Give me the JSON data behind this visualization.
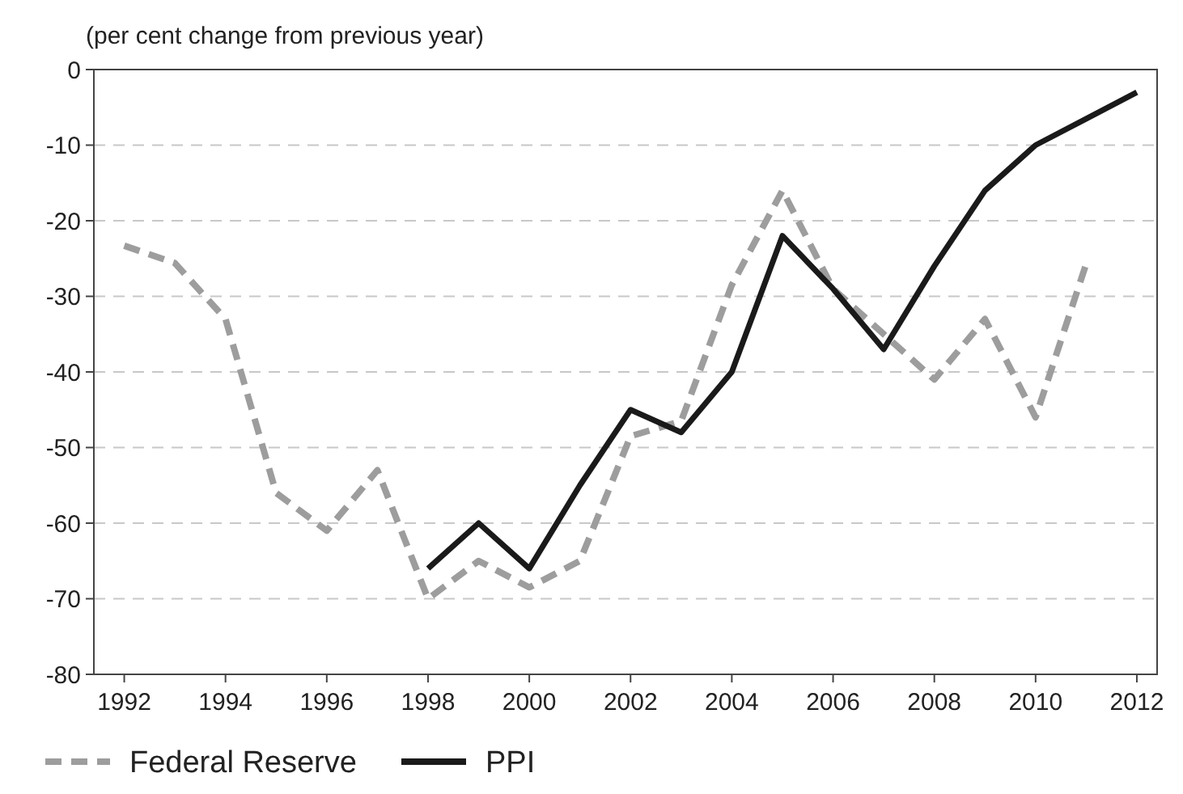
{
  "chart_data": {
    "type": "line",
    "ylabel": "(per cent change from previous year)",
    "x": [
      1992,
      1993,
      1994,
      1995,
      1996,
      1997,
      1998,
      1999,
      2000,
      2001,
      2002,
      2003,
      2004,
      2005,
      2006,
      2007,
      2008,
      2009,
      2010,
      2011,
      2012
    ],
    "series": [
      {
        "name": "Federal Reserve",
        "color": "#9d9d9d",
        "line_style": "dashed",
        "values": [
          -23.3,
          -25.6,
          -33,
          -56,
          -61,
          -53,
          -70,
          -65,
          -68.5,
          -65,
          -48.5,
          -46.5,
          -28.5,
          -16,
          -29,
          -35,
          -41,
          -33,
          -46,
          -25.7,
          null
        ]
      },
      {
        "name": "PPI",
        "color": "#1a1a1a",
        "line_style": "solid",
        "values": [
          null,
          null,
          null,
          null,
          null,
          null,
          -66,
          -60,
          -66,
          -55,
          -45,
          -48,
          -40,
          -22,
          -29,
          -37,
          -26,
          -16,
          -10,
          -6.5,
          -3
        ]
      }
    ],
    "xlim": [
      1991.4,
      2012.4
    ],
    "xticks": [
      1992,
      1994,
      1996,
      1998,
      2000,
      2002,
      2004,
      2006,
      2008,
      2010,
      2012
    ],
    "ylim": [
      -80,
      0
    ],
    "yticks": [
      0,
      -10,
      -20,
      -30,
      -40,
      -50,
      -60,
      -70,
      -80
    ],
    "grid": "y",
    "legend": "bottom"
  }
}
